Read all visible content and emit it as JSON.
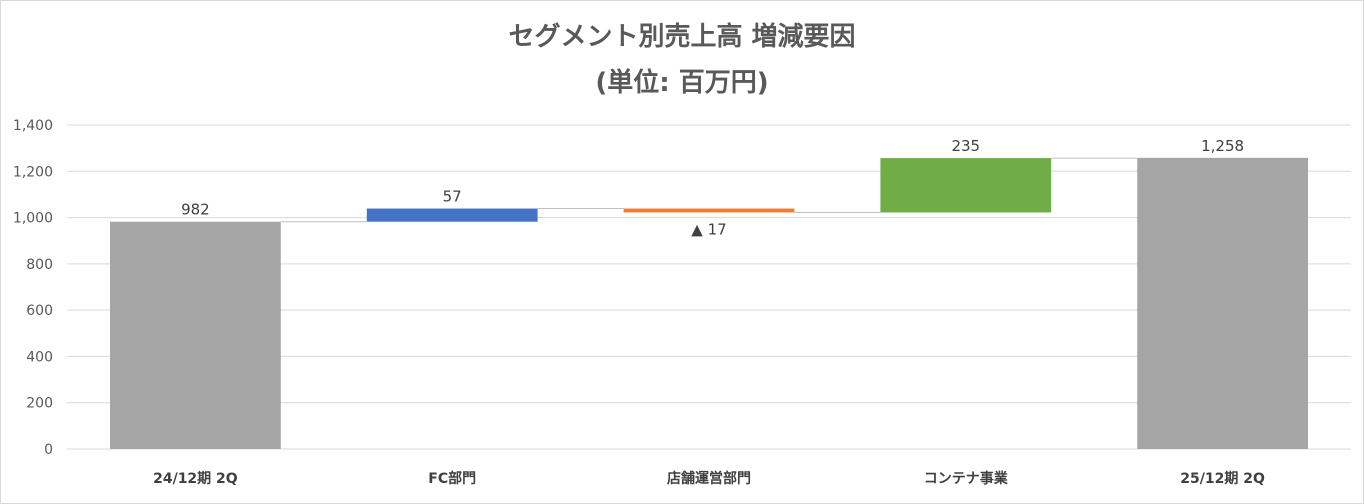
{
  "chart_data": {
    "type": "waterfall",
    "title_line1": "セグメント別売上高 増減要因",
    "title_line2": "(単位: 百万円)",
    "categories": [
      "24/12期 2Q",
      "FC部門",
      "店舗運営部門",
      "コンテナ事業",
      "25/12期 2Q"
    ],
    "kinds": [
      "total",
      "delta",
      "delta",
      "delta",
      "total"
    ],
    "values": [
      982,
      57,
      -17,
      235,
      1258
    ],
    "labels": [
      "982",
      "57",
      "▲ 17",
      "235",
      "1,258"
    ],
    "colors": [
      "#a5a5a5",
      "#4472c4",
      "#ed7d31",
      "#70ad47",
      "#a5a5a5"
    ],
    "y_ticks": [
      "0",
      "200",
      "400",
      "600",
      "800",
      "1,000",
      "1,200",
      "1,400"
    ],
    "ylim": [
      0,
      1400
    ],
    "grid": true,
    "legend": "none"
  }
}
